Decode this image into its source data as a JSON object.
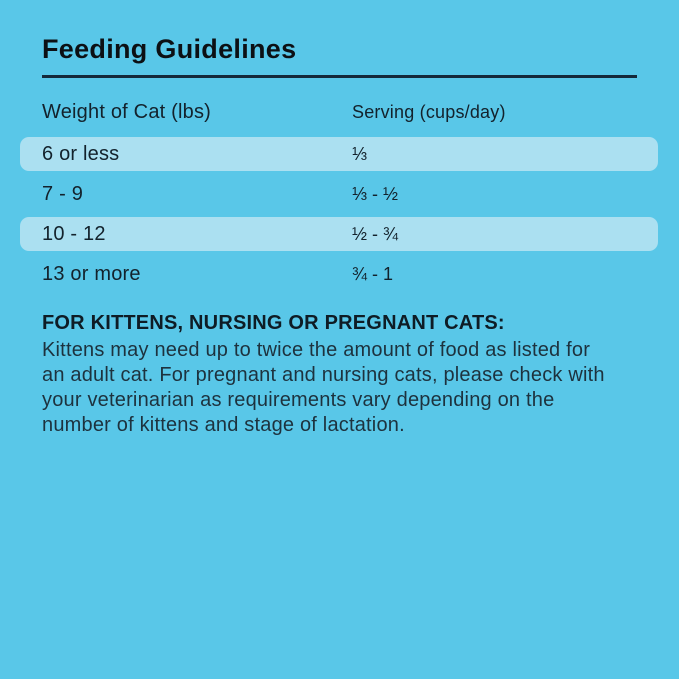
{
  "page": {
    "background_color": "#59C7E8",
    "row_highlight_color": "#ABE0F1",
    "divider_color": "#14293A",
    "text_color": "#14242E"
  },
  "header": {
    "title": "Feeding Guidelines"
  },
  "table": {
    "column_headers": [
      "Weight of Cat (lbs)",
      "Serving (cups/day)"
    ],
    "rows": [
      {
        "weight": "6 or less",
        "serving": "⅓",
        "highlighted": true
      },
      {
        "weight": "7 - 9",
        "serving": "⅓ - ½",
        "highlighted": false
      },
      {
        "weight": "10 - 12",
        "serving": "½ - ¾",
        "highlighted": true
      },
      {
        "weight": "13 or more",
        "serving": "¾ - 1",
        "highlighted": false
      }
    ]
  },
  "note": {
    "heading": "FOR KITTENS, NURSING OR PREGNANT CATS:",
    "body": "Kittens may need up to twice the amount of food as listed for an adult cat. For pregnant and nursing cats, please check with your veterinarian as requirements vary depending on the number of kittens and stage of lactation."
  }
}
